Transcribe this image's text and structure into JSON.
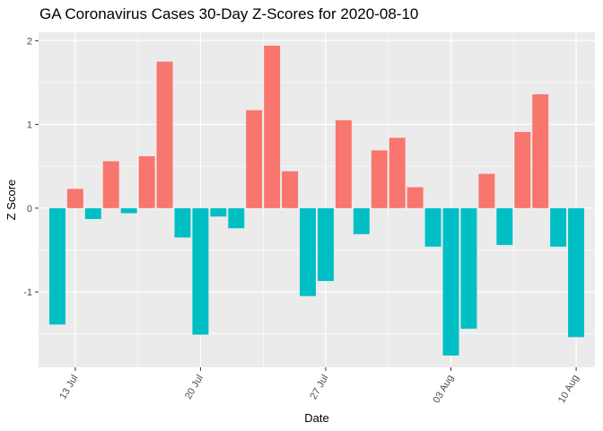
{
  "chart_data": {
    "type": "bar",
    "title": "GA Coronavirus Cases 30-Day Z-Scores for 2020-08-10",
    "xlabel": "Date",
    "ylabel": "Z Score",
    "x": [
      "2020-07-12",
      "2020-07-13",
      "2020-07-14",
      "2020-07-15",
      "2020-07-16",
      "2020-07-17",
      "2020-07-18",
      "2020-07-19",
      "2020-07-20",
      "2020-07-21",
      "2020-07-22",
      "2020-07-23",
      "2020-07-24",
      "2020-07-25",
      "2020-07-26",
      "2020-07-27",
      "2020-07-28",
      "2020-07-29",
      "2020-07-30",
      "2020-07-31",
      "2020-08-01",
      "2020-08-02",
      "2020-08-03",
      "2020-08-04",
      "2020-08-05",
      "2020-08-06",
      "2020-08-07",
      "2020-08-08",
      "2020-08-09",
      "2020-08-10"
    ],
    "values": [
      -1.39,
      0.23,
      -0.13,
      0.56,
      -0.06,
      0.62,
      1.75,
      -0.35,
      -1.51,
      -0.1,
      -0.24,
      1.17,
      1.94,
      0.44,
      -1.05,
      -0.87,
      1.05,
      -0.31,
      0.69,
      0.84,
      0.25,
      -0.46,
      -1.76,
      -1.44,
      0.41,
      -0.44,
      0.91,
      1.36,
      -0.46,
      -1.54
    ],
    "ylim": [
      -1.9,
      2.1
    ],
    "yticks": [
      -1,
      0,
      1,
      2
    ],
    "xticks": [
      {
        "date": "2020-07-13",
        "label": "13 Jul"
      },
      {
        "date": "2020-07-20",
        "label": "20 Jul"
      },
      {
        "date": "2020-07-27",
        "label": "27 Jul"
      },
      {
        "date": "2020-08-03",
        "label": "03 Aug"
      },
      {
        "date": "2020-08-10",
        "label": "10 Aug"
      }
    ],
    "colors": {
      "positive": "#F8766D",
      "negative": "#00BFC4",
      "panel": "#EBEBEB",
      "grid": "#FFFFFF"
    },
    "grid": true,
    "legend": "none"
  }
}
